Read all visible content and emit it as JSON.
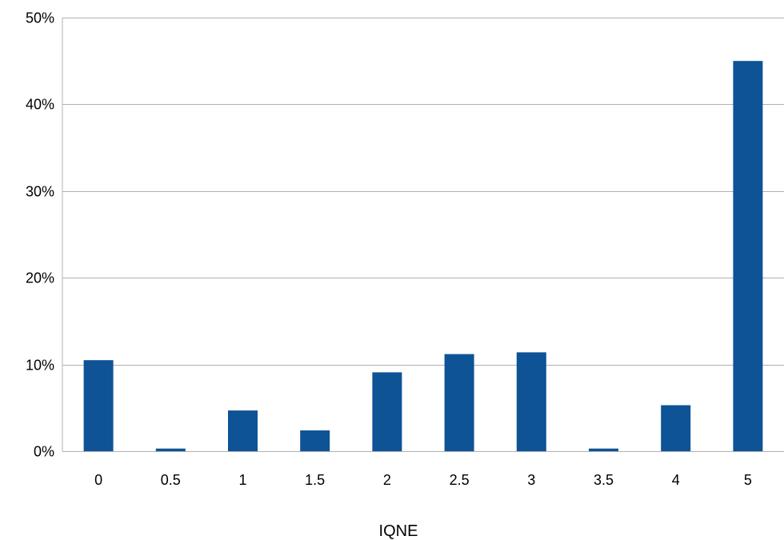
{
  "chart_data": {
    "type": "bar",
    "title": "",
    "xlabel": "IQNE",
    "ylabel": "",
    "categories": [
      "0",
      "0.5",
      "1",
      "1.5",
      "2",
      "2.5",
      "3",
      "3.5",
      "4",
      "5"
    ],
    "values": [
      10.5,
      0.3,
      4.7,
      2.4,
      9.1,
      11.2,
      11.4,
      0.3,
      5.3,
      45.0
    ],
    "value_unit": "%",
    "ylim": [
      0,
      50
    ],
    "y_ticks": [
      0,
      10,
      20,
      30,
      40,
      50
    ],
    "y_tick_labels": [
      "0%",
      "10%",
      "20%",
      "30%",
      "40%",
      "50%"
    ],
    "grid": true,
    "legend": "none",
    "bar_color": "#0E5396",
    "grid_color": "#B0B0B0"
  }
}
